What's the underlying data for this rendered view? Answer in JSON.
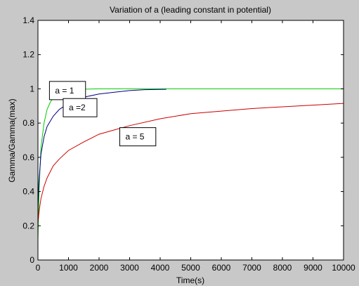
{
  "chart_data": {
    "type": "line",
    "title": "Variation of a (leading constant in potential)",
    "xlabel": "Time(s)",
    "ylabel": "Gamma/Gamma(max)",
    "xlim": [
      0,
      10000
    ],
    "ylim": [
      0,
      1.4
    ],
    "xticks": [
      0,
      1000,
      2000,
      3000,
      4000,
      5000,
      6000,
      7000,
      8000,
      9000,
      10000
    ],
    "yticks": [
      0,
      0.2,
      0.4,
      0.6,
      0.8,
      1,
      1.2,
      1.4
    ],
    "xtick_labels": [
      "0",
      "1000",
      "2000",
      "3000",
      "4000",
      "5000",
      "6000",
      "7000",
      "8000",
      "9000",
      "10000"
    ],
    "ytick_labels": [
      "0",
      "0.2",
      "0.4",
      "0.6",
      "0.8",
      "1",
      "1.2",
      "1.4"
    ],
    "grid": false,
    "series": [
      {
        "name": "",
        "color": "#00cc00",
        "x": [
          0,
          40,
          100,
          200,
          300,
          400,
          500,
          600,
          700,
          800,
          1000,
          1200,
          1500,
          2000,
          3000,
          5000,
          10000
        ],
        "y": [
          0.12,
          0.42,
          0.66,
          0.8,
          0.88,
          0.92,
          0.95,
          0.965,
          0.975,
          0.982,
          0.99,
          0.995,
          0.998,
          1.0,
          1.0,
          1.0,
          1.0
        ]
      },
      {
        "name": "",
        "color": "#000080",
        "x": [
          0,
          30,
          100,
          200,
          300,
          500,
          700,
          1000,
          1300,
          1600,
          2000,
          2500,
          3000,
          3500,
          4200
        ],
        "y": [
          0.3,
          0.45,
          0.62,
          0.72,
          0.78,
          0.84,
          0.88,
          0.915,
          0.94,
          0.955,
          0.97,
          0.98,
          0.99,
          0.995,
          0.997
        ]
      },
      {
        "name": "",
        "color": "#cc0000",
        "x": [
          0,
          50,
          100,
          200,
          300,
          500,
          700,
          1000,
          1500,
          2000,
          2500,
          3000,
          4000,
          5000,
          6000,
          7000,
          8000,
          9000,
          10000
        ],
        "y": [
          0.22,
          0.3,
          0.36,
          0.43,
          0.48,
          0.55,
          0.59,
          0.64,
          0.69,
          0.735,
          0.76,
          0.785,
          0.825,
          0.855,
          0.87,
          0.885,
          0.895,
          0.905,
          0.915
        ]
      }
    ],
    "annotations": [
      {
        "text": "a = 1",
        "x": 400,
        "y": 0.99
      },
      {
        "text": "a =2",
        "x": 850,
        "y": 0.89
      },
      {
        "text": "a = 5",
        "x": 2700,
        "y": 0.72
      }
    ]
  },
  "colors": {
    "figure_bg": "#c8c8c8",
    "axes_bg": "#ffffff",
    "axis_line": "#000000"
  }
}
